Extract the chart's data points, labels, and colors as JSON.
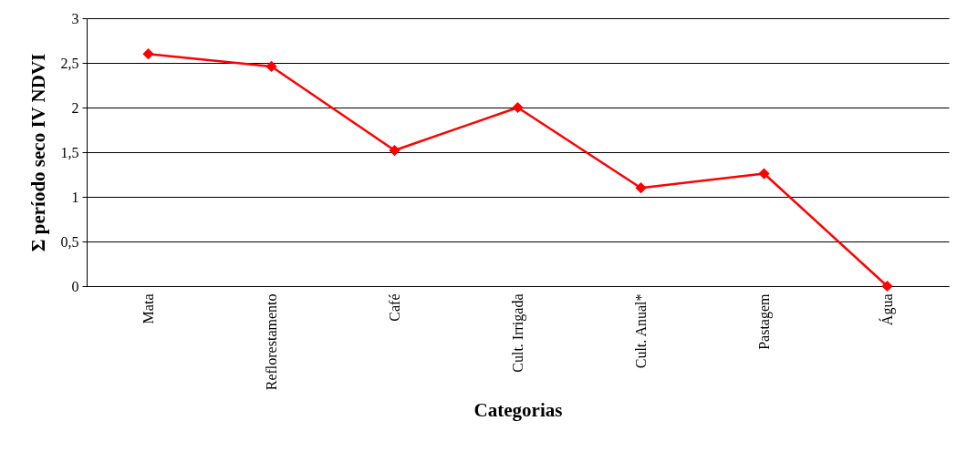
{
  "chart_data": {
    "type": "line",
    "xlabel": "Categorias",
    "ylabel": "Σ período seco IV NDVI",
    "categories": [
      "Mata",
      "Reflorestamento",
      "Café",
      "Cult. Irrigada",
      "Cult. Anual*",
      "Pastagem",
      "Água"
    ],
    "series": [
      {
        "color": "#ff0000",
        "values": [
          2.6,
          2.46,
          1.52,
          2.0,
          1.1,
          1.26,
          0
        ]
      }
    ],
    "ylim": [
      0,
      3
    ],
    "yticks": [
      0,
      {
        "value": 0.5,
        "label": "0,5"
      },
      1,
      {
        "value": 1.5,
        "label": "1,5"
      },
      2,
      {
        "value": 2.5,
        "label": "2,5"
      },
      3
    ],
    "grid": "y",
    "marker": "diamond",
    "line_style": "solid"
  }
}
